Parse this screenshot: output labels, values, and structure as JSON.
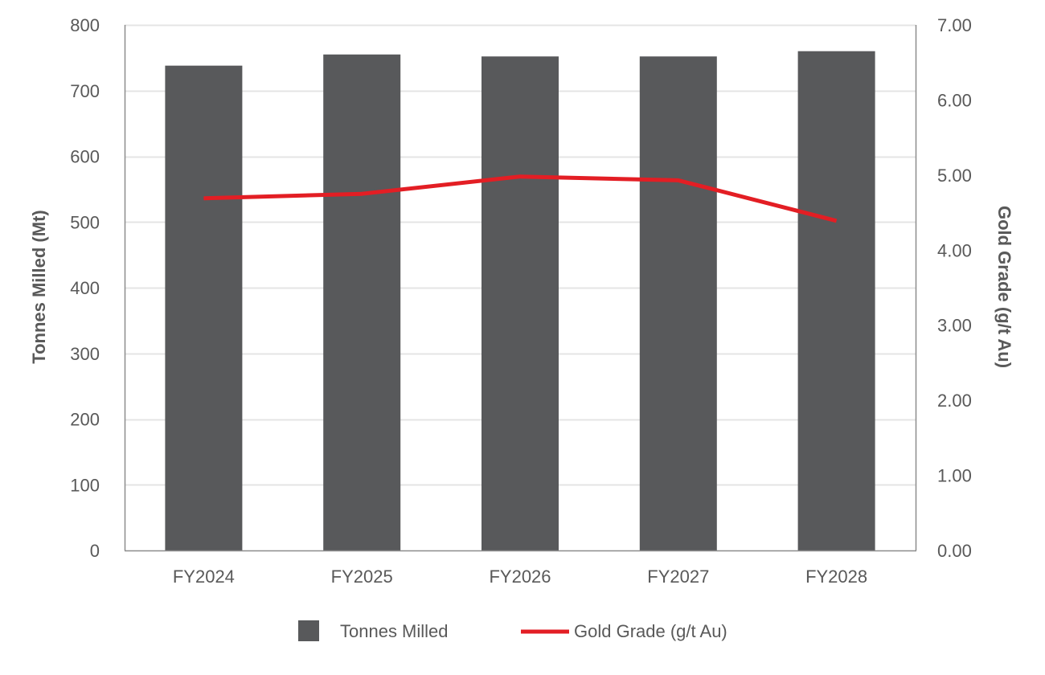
{
  "chart_data": {
    "type": "bar",
    "combo": "bar + line (dual axis)",
    "title": "",
    "categories": [
      "FY2024",
      "FY2025",
      "FY2026",
      "FY2027",
      "FY2028"
    ],
    "series": [
      {
        "name": "Tonnes Milled",
        "type": "bar",
        "axis": "left",
        "color": "#58595b",
        "values": [
          738,
          755,
          752,
          752,
          760
        ]
      },
      {
        "name": "Gold Grade (g/t Au)",
        "type": "line",
        "axis": "right",
        "color": "#e31e24",
        "values": [
          4.69,
          4.75,
          4.98,
          4.93,
          4.39
        ]
      }
    ],
    "xlabel": "",
    "ylabel": "Tonnes Milled (Mt)",
    "ylabel_right": "Gold Grade (g/t Au)",
    "ylim": [
      0,
      800
    ],
    "ylim_right": [
      0,
      7
    ],
    "yticks": [
      "0",
      "100",
      "200",
      "300",
      "400",
      "500",
      "600",
      "700",
      "800"
    ],
    "yticks_right": [
      "0.00",
      "1.00",
      "2.00",
      "3.00",
      "4.00",
      "5.00",
      "6.00",
      "7.00"
    ],
    "grid": true,
    "legend_position": "bottom"
  },
  "legend": {
    "items": [
      {
        "label": "Tonnes Milled",
        "swatch": "square",
        "color": "#58595b"
      },
      {
        "label": "Gold Grade (g/t Au)",
        "swatch": "line",
        "color": "#e31e24"
      }
    ]
  },
  "colors": {
    "gridline": "#e4e4e4",
    "axis": "#8c8c8c",
    "text": "#595959"
  }
}
